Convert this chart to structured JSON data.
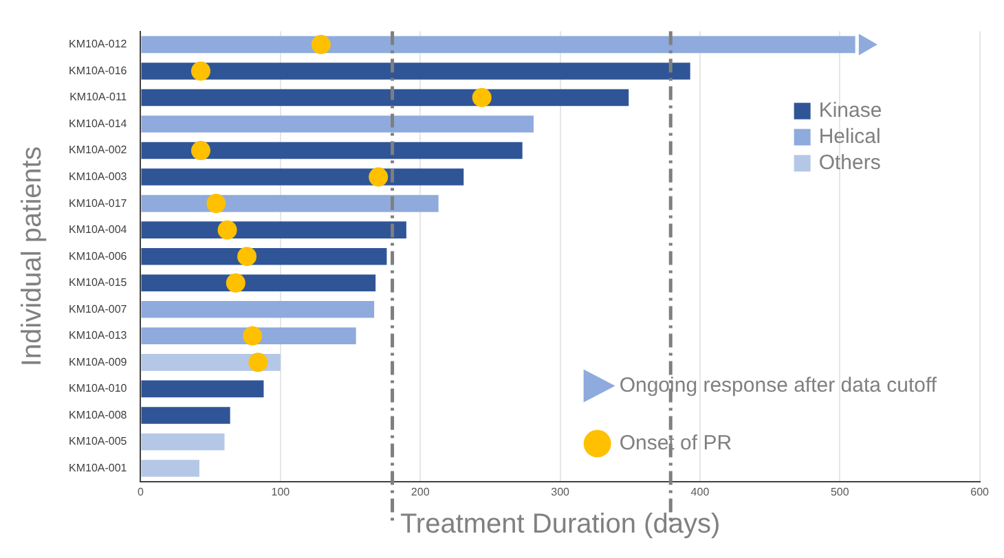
{
  "chart_data": {
    "type": "bar",
    "orientation": "horizontal",
    "stacked": true,
    "xlabel": "Treatment Duration (days)",
    "ylabel": "Individual patients",
    "categories": [
      "KM10A-012",
      "KM10A-016",
      "KM10A-011",
      "KM10A-014",
      "KM10A-002",
      "KM10A-003",
      "KM10A-017",
      "KM10A-004",
      "KM10A-006",
      "KM10A-015",
      "KM10A-007",
      "KM10A-013",
      "KM10A-009",
      "KM10A-010",
      "KM10A-008",
      "KM10A-005",
      "KM10A-001"
    ],
    "series": [
      {
        "name": "Kinase",
        "color": "#2f5597",
        "values": [
          null,
          393,
          349,
          null,
          273,
          231,
          null,
          190,
          176,
          168,
          null,
          null,
          null,
          88,
          64,
          null,
          null
        ]
      },
      {
        "name": "Helical",
        "color": "#8faadc",
        "values": [
          511,
          null,
          null,
          281,
          null,
          null,
          213,
          null,
          null,
          null,
          167,
          154,
          null,
          null,
          null,
          null,
          null
        ]
      },
      {
        "name": "Others",
        "color": "#b4c7e7",
        "values": [
          null,
          null,
          null,
          null,
          null,
          null,
          null,
          null,
          null,
          null,
          null,
          null,
          100,
          null,
          null,
          60,
          42
        ]
      },
      {
        "name": "Ongoing response after data cutoff",
        "type": "scatter",
        "marker": "triangle",
        "color": "#8faadc",
        "x": [
          "KM10A-012"
        ],
        "values": [
          518
        ]
      },
      {
        "name": "Onset of PR",
        "type": "scatter",
        "marker": "circle",
        "color": "#ffc000",
        "x": [
          "KM10A-012",
          "KM10A-016",
          "KM10A-011",
          "KM10A-002",
          "KM10A-003",
          "KM10A-017",
          "KM10A-004",
          "KM10A-006",
          "KM10A-015",
          "KM10A-013",
          "KM10A-009"
        ],
        "values": [
          129,
          43,
          244,
          43,
          170,
          54,
          62,
          76,
          68,
          80,
          84
        ]
      }
    ],
    "xlim": [
      0,
      600
    ],
    "xticks": [
      0,
      100,
      200,
      300,
      400,
      500,
      600
    ],
    "grid": "x",
    "legend": "right",
    "ref_lines": [
      {
        "axis": "x",
        "value": 180,
        "color": "#7f7f7f",
        "line_style": "dashed"
      },
      {
        "axis": "x",
        "value": 379,
        "color": "#7f7f7f",
        "line_style": "dashed"
      }
    ]
  }
}
